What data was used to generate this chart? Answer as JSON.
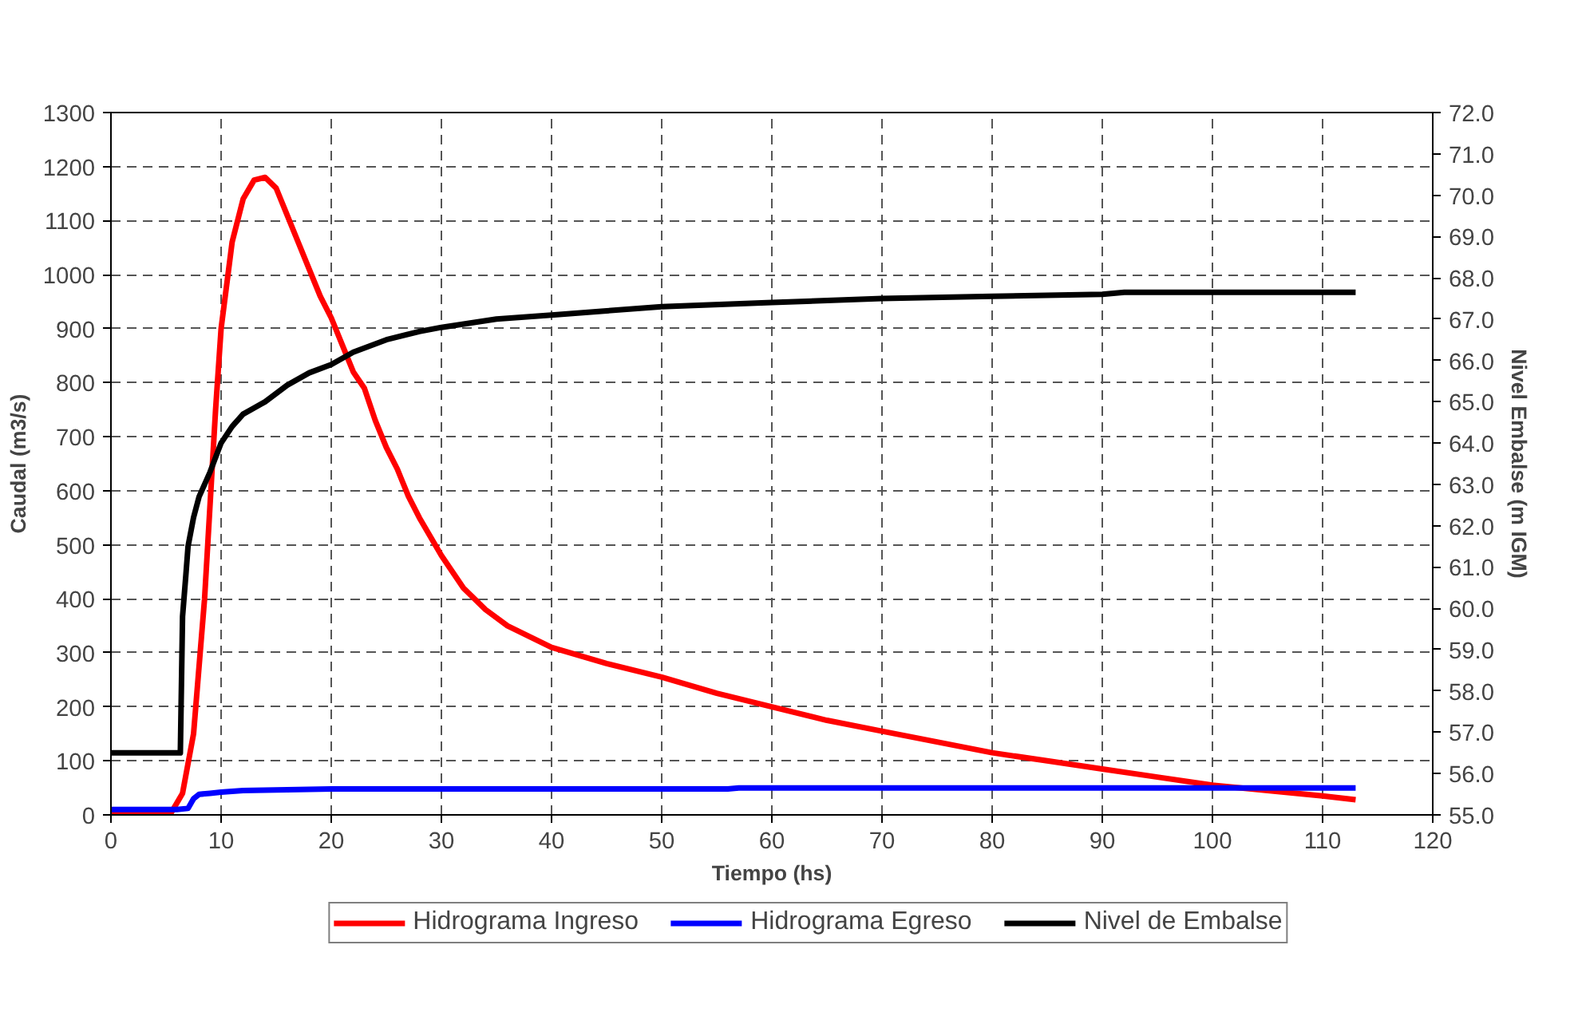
{
  "chart_data": {
    "type": "line",
    "xlabel": "Tiempo (hs)",
    "ylabel": "Caudal (m3/s)",
    "y2label": "Nivel Embalse (m IGM)",
    "xlim": [
      0,
      120
    ],
    "xticks": [
      0,
      10,
      20,
      30,
      40,
      50,
      60,
      70,
      80,
      90,
      100,
      110,
      120
    ],
    "ylim": [
      0,
      1300
    ],
    "yticks": [
      0,
      100,
      200,
      300,
      400,
      500,
      600,
      700,
      800,
      900,
      1000,
      1100,
      1200,
      1300
    ],
    "y2lim": [
      55,
      72
    ],
    "y2ticks": [
      {
        "value": 55,
        "label": "55.0"
      },
      {
        "value": 56,
        "label": "56.0"
      },
      {
        "value": 57,
        "label": "57.0"
      },
      {
        "value": 58,
        "label": "58.0"
      },
      {
        "value": 59,
        "label": "59.0"
      },
      {
        "value": 60,
        "label": "60.0"
      },
      {
        "value": 61,
        "label": "61.0"
      },
      {
        "value": 62,
        "label": "62.0"
      },
      {
        "value": 63,
        "label": "63.0"
      },
      {
        "value": 64,
        "label": "64.0"
      },
      {
        "value": 65,
        "label": "65.0"
      },
      {
        "value": 66,
        "label": "66.0"
      },
      {
        "value": 67,
        "label": "67.0"
      },
      {
        "value": 68,
        "label": "68.0"
      },
      {
        "value": 69,
        "label": "69.0"
      },
      {
        "value": 70,
        "label": "70.0"
      },
      {
        "value": 71,
        "label": "71.0"
      },
      {
        "value": 72,
        "label": "72.0"
      }
    ],
    "grid": true,
    "legend": "bottom",
    "line_style": "solid",
    "series": [
      {
        "name": "Hidrograma Ingreso",
        "color": "#ff0000",
        "x": [
          0,
          5.5,
          6.5,
          7.5,
          8.5,
          9.5,
          10,
          11,
          12,
          13,
          14,
          15,
          16,
          17,
          18,
          19,
          20,
          21,
          22,
          23,
          24,
          25,
          26,
          27,
          28,
          30,
          32,
          34,
          36,
          38,
          40,
          45,
          50,
          55,
          60,
          65,
          70,
          75,
          80,
          85,
          90,
          95,
          100,
          105,
          110,
          113
        ],
        "values": [
          5,
          5,
          40,
          150,
          400,
          750,
          900,
          1060,
          1140,
          1175,
          1180,
          1160,
          1110,
          1060,
          1010,
          960,
          920,
          870,
          820,
          790,
          730,
          680,
          640,
          590,
          550,
          480,
          420,
          380,
          350,
          330,
          310,
          280,
          255,
          225,
          200,
          175,
          155,
          135,
          115,
          100,
          85,
          70,
          55,
          45,
          35,
          28
        ]
      },
      {
        "name": "Hidrograma Egreso",
        "color": "#0000ff",
        "x": [
          0,
          6,
          7,
          7.5,
          8,
          9,
          10,
          12,
          20,
          56,
          57,
          113
        ],
        "values": [
          10,
          10,
          12,
          30,
          38,
          40,
          42,
          45,
          48,
          48,
          50,
          50
        ]
      },
      {
        "name": "Nivel de Embalse",
        "color": "#000000",
        "axis": "y2",
        "x": [
          0,
          6.3,
          6.5,
          6.8,
          7,
          7.5,
          8,
          9,
          10,
          11,
          12,
          14,
          16,
          18,
          20,
          22,
          25,
          28,
          30,
          35,
          40,
          45,
          50,
          60,
          70,
          80,
          90,
          92,
          113
        ],
        "values": [
          56.5,
          56.5,
          59.8,
          60.8,
          61.5,
          62.2,
          62.7,
          63.3,
          64.0,
          64.4,
          64.7,
          65.0,
          65.4,
          65.7,
          65.9,
          66.2,
          66.5,
          66.7,
          66.8,
          67.0,
          67.1,
          67.2,
          67.3,
          67.4,
          67.5,
          67.55,
          67.6,
          67.65,
          67.65
        ]
      }
    ]
  }
}
